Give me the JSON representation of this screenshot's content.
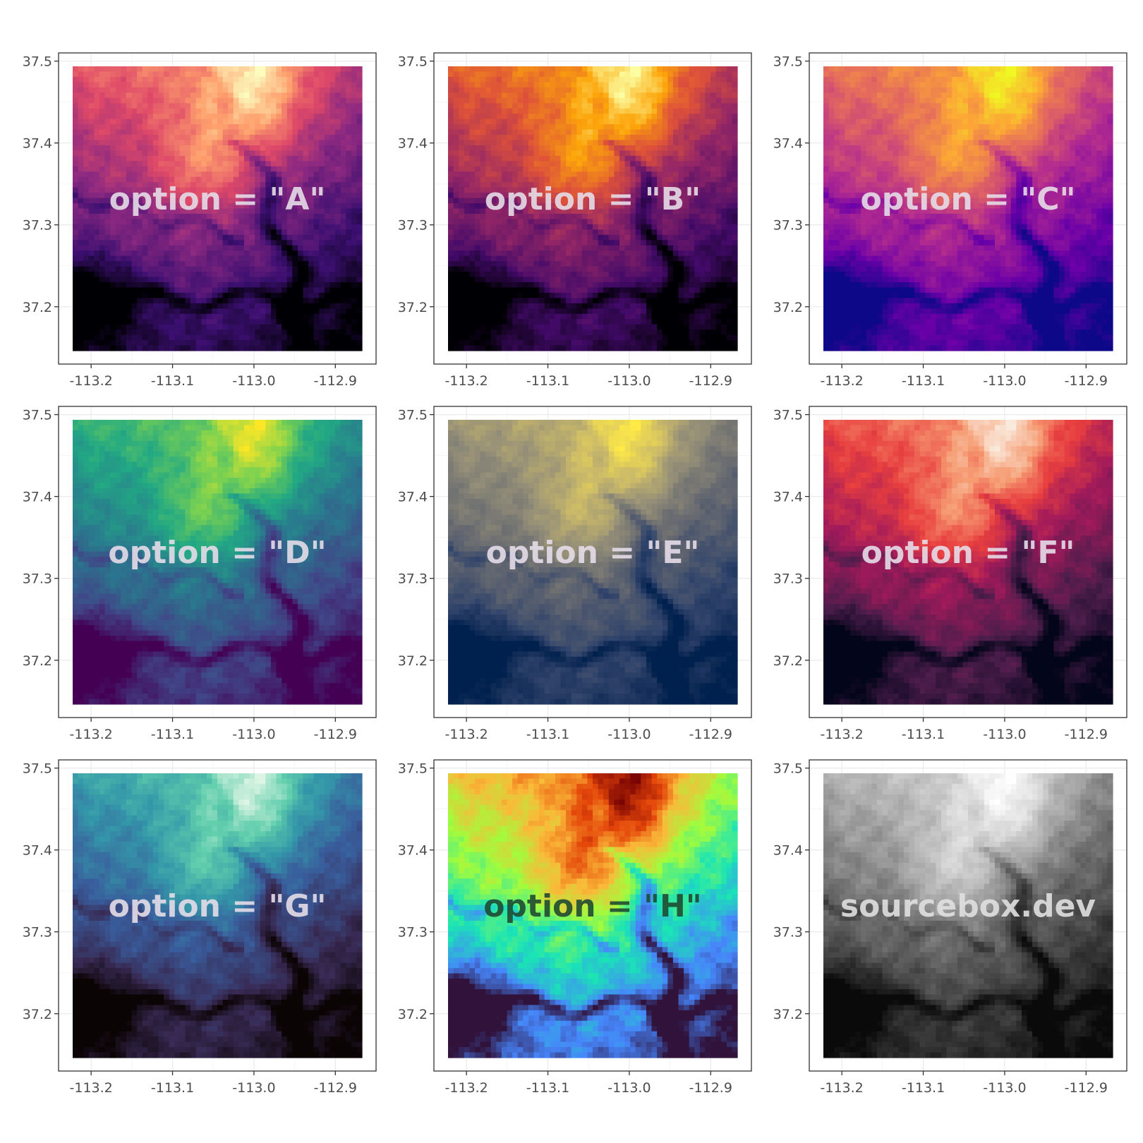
{
  "chart_data": [
    {
      "type": "heatmap",
      "palette": "magma",
      "annotation": "option = \"A\"",
      "annotation_color": "#e6dde8",
      "colors": [
        "#000004",
        "#3b0f70",
        "#8c2981",
        "#de4968",
        "#fe9f6d",
        "#fcfdbf"
      ],
      "x_ticks": [
        -113.2,
        -113.1,
        -113.0,
        -112.9
      ],
      "y_ticks": [
        37.2,
        37.3,
        37.4,
        37.5
      ],
      "x_tick_labels": [
        "-113.2",
        "-113.1",
        "-113.0",
        "-112.9"
      ],
      "y_tick_labels": [
        "37.2",
        "37.3",
        "37.4",
        "37.5"
      ],
      "xlim": [
        -113.24,
        -112.85
      ],
      "ylim": [
        37.13,
        37.51
      ],
      "grid": true
    },
    {
      "type": "heatmap",
      "palette": "inferno",
      "annotation": "option = \"B\"",
      "annotation_color": "#e6dde8",
      "colors": [
        "#000004",
        "#420a68",
        "#932667",
        "#dd513a",
        "#fca50a",
        "#fcffa4"
      ],
      "x_ticks": [
        -113.2,
        -113.1,
        -113.0,
        -112.9
      ],
      "y_ticks": [
        37.2,
        37.3,
        37.4,
        37.5
      ],
      "x_tick_labels": [
        "-113.2",
        "-113.1",
        "-113.0",
        "-112.9"
      ],
      "y_tick_labels": [
        "37.2",
        "37.3",
        "37.4",
        "37.5"
      ],
      "xlim": [
        -113.24,
        -112.85
      ],
      "ylim": [
        37.13,
        37.51
      ],
      "grid": true
    },
    {
      "type": "heatmap",
      "palette": "plasma",
      "annotation": "option = \"C\"",
      "annotation_color": "#e6dde8",
      "colors": [
        "#0d0887",
        "#6a00a8",
        "#b12a90",
        "#e16462",
        "#fca636",
        "#f0f921"
      ],
      "x_ticks": [
        -113.2,
        -113.1,
        -113.0,
        -112.9
      ],
      "y_ticks": [
        37.2,
        37.3,
        37.4,
        37.5
      ],
      "x_tick_labels": [
        "-113.2",
        "-113.1",
        "-113.0",
        "-112.9"
      ],
      "y_tick_labels": [
        "37.2",
        "37.3",
        "37.4",
        "37.5"
      ],
      "xlim": [
        -113.24,
        -112.85
      ],
      "ylim": [
        37.13,
        37.51
      ],
      "grid": true
    },
    {
      "type": "heatmap",
      "palette": "viridis",
      "annotation": "option = \"D\"",
      "annotation_color": "#e6dde8",
      "colors": [
        "#440154",
        "#414487",
        "#2a788e",
        "#22a884",
        "#7ad151",
        "#fde725"
      ],
      "x_ticks": [
        -113.2,
        -113.1,
        -113.0,
        -112.9
      ],
      "y_ticks": [
        37.2,
        37.3,
        37.4,
        37.5
      ],
      "x_tick_labels": [
        "-113.2",
        "-113.1",
        "-113.0",
        "-112.9"
      ],
      "y_tick_labels": [
        "37.2",
        "37.3",
        "37.4",
        "37.5"
      ],
      "xlim": [
        -113.24,
        -112.85
      ],
      "ylim": [
        37.13,
        37.51
      ],
      "grid": true
    },
    {
      "type": "heatmap",
      "palette": "cividis",
      "annotation": "option = \"E\"",
      "annotation_color": "#e6dde8",
      "colors": [
        "#00204d",
        "#31446b",
        "#666970",
        "#958f78",
        "#cbba69",
        "#ffea46"
      ],
      "x_ticks": [
        -113.2,
        -113.1,
        -113.0,
        -112.9
      ],
      "y_ticks": [
        37.2,
        37.3,
        37.4,
        37.5
      ],
      "x_tick_labels": [
        "-113.2",
        "-113.1",
        "-113.0",
        "-112.9"
      ],
      "y_tick_labels": [
        "37.2",
        "37.3",
        "37.4",
        "37.5"
      ],
      "xlim": [
        -113.24,
        -112.85
      ],
      "ylim": [
        37.13,
        37.51
      ],
      "grid": true
    },
    {
      "type": "heatmap",
      "palette": "rocket",
      "annotation": "option = \"F\"",
      "annotation_color": "#e6dde8",
      "colors": [
        "#03051a",
        "#4c1d4b",
        "#a11a5b",
        "#e83f3f",
        "#f69c73",
        "#faebdd"
      ],
      "x_ticks": [
        -113.2,
        -113.1,
        -113.0,
        -112.9
      ],
      "y_ticks": [
        37.2,
        37.3,
        37.4,
        37.5
      ],
      "x_tick_labels": [
        "-113.2",
        "-113.1",
        "-113.0",
        "-112.9"
      ],
      "y_tick_labels": [
        "37.2",
        "37.3",
        "37.4",
        "37.5"
      ],
      "xlim": [
        -113.24,
        -112.85
      ],
      "ylim": [
        37.13,
        37.51
      ],
      "grid": true
    },
    {
      "type": "heatmap",
      "palette": "mako",
      "annotation": "option = \"G\"",
      "annotation_color": "#e6dde8",
      "colors": [
        "#0b0405",
        "#382a54",
        "#395d9c",
        "#3497a9",
        "#60ceac",
        "#def5e5"
      ],
      "x_ticks": [
        -113.2,
        -113.1,
        -113.0,
        -112.9
      ],
      "y_ticks": [
        37.2,
        37.3,
        37.4,
        37.5
      ],
      "x_tick_labels": [
        "-113.2",
        "-113.1",
        "-113.0",
        "-112.9"
      ],
      "y_tick_labels": [
        "37.2",
        "37.3",
        "37.4",
        "37.5"
      ],
      "xlim": [
        -113.24,
        -112.85
      ],
      "ylim": [
        37.13,
        37.51
      ],
      "grid": true
    },
    {
      "type": "heatmap",
      "palette": "turbo",
      "annotation": "option = \"H\"",
      "annotation_color": "#1f4a32",
      "colors": [
        "#30123b",
        "#4686fb",
        "#1ae4b6",
        "#a2fc3c",
        "#faba39",
        "#e4460a",
        "#7a0403"
      ],
      "x_ticks": [
        -113.2,
        -113.1,
        -113.0,
        -112.9
      ],
      "y_ticks": [
        37.2,
        37.3,
        37.4,
        37.5
      ],
      "x_tick_labels": [
        "-113.2",
        "-113.1",
        "-113.0",
        "-112.9"
      ],
      "y_tick_labels": [
        "37.2",
        "37.3",
        "37.4",
        "37.5"
      ],
      "xlim": [
        -113.24,
        -112.85
      ],
      "ylim": [
        37.13,
        37.51
      ],
      "grid": true
    },
    {
      "type": "heatmap",
      "palette": "grey",
      "annotation": "sourcebox.dev",
      "annotation_color": "#e0e0e0",
      "colors": [
        "#0a0a0a",
        "#3a3a3a",
        "#707070",
        "#a8a8a8",
        "#d8d8d8",
        "#ffffff"
      ],
      "x_ticks": [
        -113.2,
        -113.1,
        -113.0,
        -112.9
      ],
      "y_ticks": [
        37.2,
        37.3,
        37.4,
        37.5
      ],
      "x_tick_labels": [
        "-113.2",
        "-113.1",
        "-113.0",
        "-112.9"
      ],
      "y_tick_labels": [
        "37.2",
        "37.3",
        "37.4",
        "37.5"
      ],
      "xlim": [
        -113.24,
        -112.85
      ],
      "ylim": [
        37.13,
        37.51
      ],
      "grid": true
    }
  ]
}
